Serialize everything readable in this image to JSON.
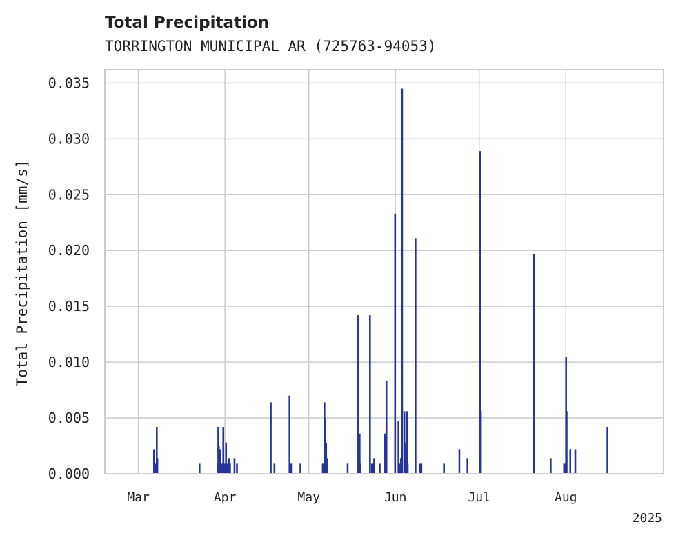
{
  "chart_data": {
    "type": "bar",
    "title": "Total Precipitation",
    "subtitle": "TORRINGTON MUNICIPAL AR (725763-94053)",
    "ylabel": "Total Precipitation [mm/s]",
    "xlabel": "",
    "year_label": "2025",
    "ylim": [
      0,
      0.0362
    ],
    "yticks": [
      "0.000",
      "0.005",
      "0.010",
      "0.015",
      "0.020",
      "0.025",
      "0.030",
      "0.035"
    ],
    "ytick_values": [
      0,
      0.005,
      0.01,
      0.015,
      0.02,
      0.025,
      0.03,
      0.035
    ],
    "xlim_day": [
      -12,
      188
    ],
    "xticks": [
      {
        "label": "Mar",
        "day": 0
      },
      {
        "label": "Apr",
        "day": 31
      },
      {
        "label": "May",
        "day": 61
      },
      {
        "label": "Jun",
        "day": 92
      },
      {
        "label": "Jul",
        "day": 122
      },
      {
        "label": "Aug",
        "day": 153
      }
    ],
    "series": [
      {
        "name": "Total Precipitation",
        "color": "#27349b",
        "day": [
          5.6,
          6.1,
          6.6,
          6.8,
          21.9,
          28.4,
          28.6,
          28.8,
          29.4,
          29.9,
          30.4,
          30.9,
          31.4,
          31.8,
          32.4,
          32.8,
          34.4,
          35.3,
          47.4,
          48.7,
          54.1,
          54.6,
          54.9,
          58.0,
          66.0,
          66.3,
          66.6,
          66.9,
          67.2,
          67.5,
          74.9,
          78.7,
          79.2,
          79.5,
          82.9,
          83.6,
          84.1,
          84.4,
          86.4,
          88.2,
          88.6,
          88.8,
          91.9,
          93.1,
          93.4,
          94.0,
          94.4,
          95.2,
          95.6,
          95.8,
          96.2,
          96.4,
          99.2,
          100.8,
          101.3,
          109.4,
          114.9,
          117.8,
          122.4,
          122.6,
          141.6,
          147.6,
          152.4,
          152.9,
          153.1,
          153.3,
          154.6,
          156.4,
          167.9
        ],
        "values": [
          0.0022,
          0.0009,
          0.0042,
          0.0014,
          0.0009,
          0.0009,
          0.0042,
          0.0025,
          0.0022,
          0.0009,
          0.0042,
          0.0009,
          0.0028,
          0.0009,
          0.0014,
          0.0009,
          0.0014,
          0.0009,
          0.0064,
          0.0009,
          0.007,
          0.0009,
          0.0009,
          0.0009,
          0.0009,
          0.0009,
          0.0064,
          0.005,
          0.0028,
          0.0014,
          0.0009,
          0.0142,
          0.0036,
          0.0009,
          0.0142,
          0.0009,
          0.0009,
          0.0014,
          0.0009,
          0.0036,
          0.0014,
          0.0083,
          0.0233,
          0.0047,
          0.0009,
          0.0014,
          0.0345,
          0.0056,
          0.0028,
          0.0022,
          0.0056,
          0.0009,
          0.0211,
          0.0009,
          0.0009,
          0.0009,
          0.0022,
          0.0014,
          0.0289,
          0.0056,
          0.0197,
          0.0014,
          0.0009,
          0.0009,
          0.0105,
          0.0056,
          0.0022,
          0.0022,
          0.0042
        ]
      }
    ]
  }
}
